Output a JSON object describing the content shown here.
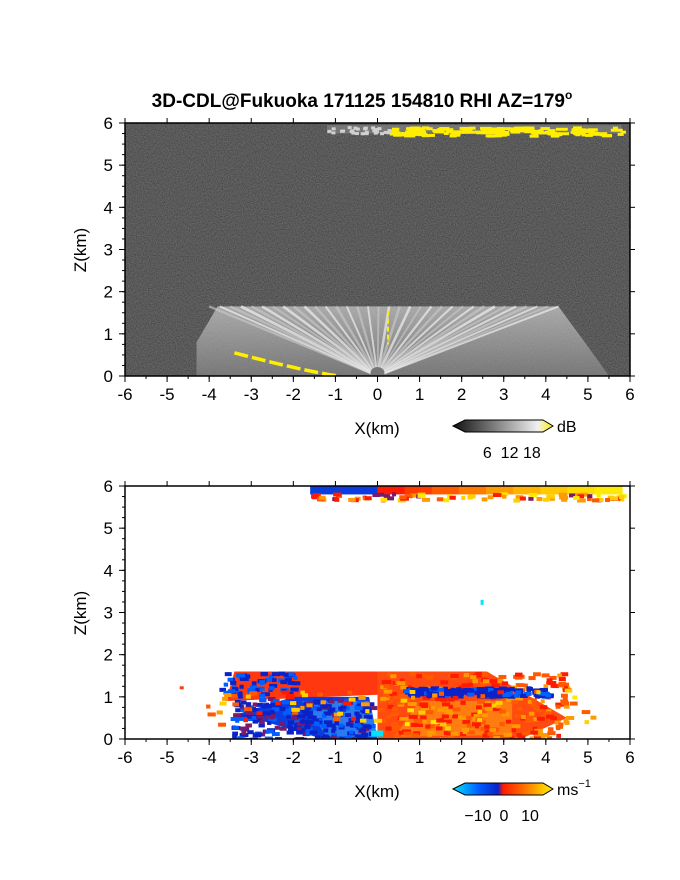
{
  "title_main": "3D-CDL@Fukuoka 171125 154810 RHI AZ=179",
  "title_degree": "o",
  "colors": {
    "reflectivity_bg": "#262626",
    "cloud_top": "#ffee00",
    "velocity_scale": [
      "#00e5ff",
      "#0060ff",
      "#0a22c8",
      "#7a1a6a",
      "#ff1a00",
      "#ff5a00",
      "#ff9a00",
      "#ffd000",
      "#ffe900"
    ],
    "frame": "#000000"
  },
  "chart_data": [
    {
      "type": "heatmap",
      "panel": "reflectivity",
      "xlabel": "X(km)",
      "ylabel": "Z(km)",
      "xlim": [
        -6,
        6
      ],
      "ylim": [
        0,
        6
      ],
      "x_ticks": [
        "-6",
        "-5",
        "-4",
        "-3",
        "-2",
        "-1",
        "0",
        "1",
        "2",
        "3",
        "4",
        "5",
        "6"
      ],
      "y_ticks": [
        "0",
        "1",
        "2",
        "3",
        "4",
        "5",
        "6"
      ],
      "colorbar": {
        "unit": "dB",
        "ticks": [
          "6",
          "12",
          "18"
        ],
        "range": [
          0,
          21
        ]
      },
      "features": [
        {
          "name": "cloud_layer",
          "x_range": [
            -1.2,
            5.8
          ],
          "z_range": [
            5.75,
            5.95
          ],
          "value": 19
        },
        {
          "name": "aerosol_layer_top",
          "z": 1.65,
          "x_range": [
            -3.8,
            4.3
          ]
        },
        {
          "name": "low_echo_edge",
          "x_range": [
            -3.4,
            -0.9
          ],
          "z_range": [
            0.0,
            0.55
          ],
          "value": 19
        }
      ]
    },
    {
      "type": "heatmap",
      "panel": "doppler_velocity",
      "xlabel": "X(km)",
      "ylabel": "Z(km)",
      "xlim": [
        -6,
        6
      ],
      "ylim": [
        0,
        6
      ],
      "x_ticks": [
        "-6",
        "-5",
        "-4",
        "-3",
        "-2",
        "-1",
        "0",
        "1",
        "2",
        "3",
        "4",
        "5",
        "6"
      ],
      "y_ticks": [
        "0",
        "1",
        "2",
        "3",
        "4",
        "5",
        "6"
      ],
      "colorbar": {
        "unit": "ms",
        "unit_exp": "−1",
        "ticks": [
          "−10",
          "0",
          "10"
        ],
        "range": [
          -15,
          15
        ]
      },
      "features": [
        {
          "name": "cloud_layer_negative",
          "x_range": [
            -1.6,
            0.0
          ],
          "z_range": [
            5.8,
            6.0
          ],
          "value": -8
        },
        {
          "name": "cloud_layer_positive",
          "x_range": [
            0.0,
            5.8
          ],
          "z_range": [
            5.8,
            6.0
          ],
          "value": 9
        },
        {
          "name": "boundary_layer_negative",
          "x_range": [
            -3.5,
            -0.2
          ],
          "z_range": [
            0.0,
            1.0
          ],
          "value": -7
        },
        {
          "name": "boundary_layer_positive",
          "x_range": [
            0.0,
            4.5
          ],
          "z_range": [
            0.0,
            1.6
          ],
          "value": 3
        },
        {
          "name": "upper_band_negative",
          "x_range": [
            0.6,
            4.0
          ],
          "z_range": [
            1.05,
            1.25
          ],
          "value": -7
        },
        {
          "name": "isolated_point",
          "x": 2.45,
          "z": 3.3,
          "value": -13
        }
      ]
    }
  ]
}
